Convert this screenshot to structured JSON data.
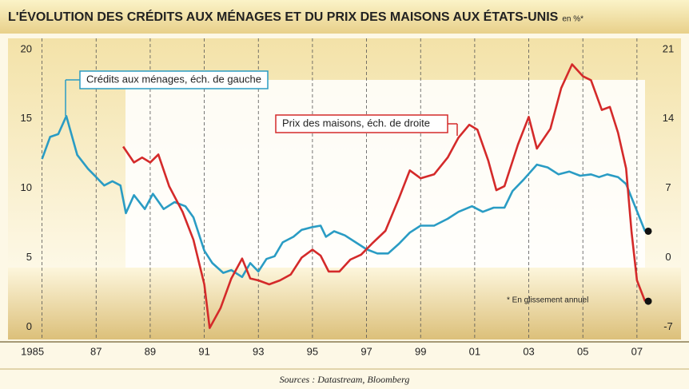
{
  "chart_data": {
    "type": "line",
    "title": "L'ÉVOLUTION DES CRÉDITS AUX MÉNAGES ET DU PRIX DES MAISONS AUX ÉTATS-UNIS",
    "subtitle": "en %*",
    "annotation": "* En glissement annuel",
    "source": "Sources : Datastream, Bloomberg",
    "xlim": [
      1983.8,
      2008.6
    ],
    "xticks": [
      {
        "value": 1985,
        "label": "1985"
      },
      {
        "value": 1987,
        "label": "87"
      },
      {
        "value": 1989,
        "label": "89"
      },
      {
        "value": 1991,
        "label": "91"
      },
      {
        "value": 1993,
        "label": "93"
      },
      {
        "value": 1995,
        "label": "95"
      },
      {
        "value": 1997,
        "label": "97"
      },
      {
        "value": 1999,
        "label": "99"
      },
      {
        "value": 2001,
        "label": "01"
      },
      {
        "value": 2003,
        "label": "03"
      },
      {
        "value": 2005,
        "label": "05"
      },
      {
        "value": 2007,
        "label": "07"
      }
    ],
    "ylim": [
      -0.9,
      20.8
    ],
    "yticks": [
      0,
      5,
      10,
      15,
      20
    ],
    "y2lim": [
      -8.26,
      22.12
    ],
    "y2ticks": [
      -7,
      0,
      7,
      14,
      21
    ],
    "grid": true,
    "series": [
      {
        "name": "Crédits aux ménages, éch. de gauche",
        "color": "#2a9cc4",
        "axis": "y",
        "x": [
          1985.0,
          1985.3,
          1985.6,
          1985.9,
          1986.3,
          1986.7,
          1987.0,
          1987.3,
          1987.6,
          1987.9,
          1988.1,
          1988.4,
          1988.8,
          1989.1,
          1989.5,
          1989.9,
          1990.3,
          1990.6,
          1991.0,
          1991.3,
          1991.7,
          1992.0,
          1992.4,
          1992.7,
          1993.0,
          1993.3,
          1993.6,
          1993.9,
          1994.3,
          1994.6,
          1995.0,
          1995.3,
          1995.5,
          1995.8,
          1996.2,
          1996.6,
          1997.0,
          1997.4,
          1997.8,
          1998.2,
          1998.6,
          1999.0,
          1999.5,
          2000.0,
          2000.4,
          2000.9,
          2001.3,
          2001.7,
          2002.1,
          2002.4,
          2002.8,
          2003.3,
          2003.7,
          2004.1,
          2004.5,
          2004.9,
          2005.3,
          2005.6,
          2005.9,
          2006.3,
          2006.6,
          2007.3
        ],
        "values": [
          12.1,
          13.7,
          13.9,
          15.2,
          12.4,
          11.4,
          10.8,
          10.2,
          10.5,
          10.2,
          8.2,
          9.5,
          8.5,
          9.6,
          8.5,
          9.0,
          8.7,
          7.9,
          5.5,
          4.6,
          3.9,
          4.1,
          3.6,
          4.6,
          4.0,
          4.9,
          5.1,
          6.1,
          6.5,
          7.0,
          7.2,
          7.3,
          6.5,
          6.9,
          6.6,
          6.1,
          5.6,
          5.3,
          5.3,
          6.0,
          6.8,
          7.3,
          7.3,
          7.8,
          8.3,
          8.7,
          8.3,
          8.6,
          8.6,
          9.8,
          10.6,
          11.7,
          11.5,
          11.0,
          11.2,
          10.9,
          11.0,
          10.8,
          11.0,
          10.8,
          10.3,
          6.9
        ]
      },
      {
        "name": "Prix des maisons, éch. de droite",
        "color": "#d42a2a",
        "axis": "y2",
        "x": [
          1988.0,
          1988.4,
          1988.7,
          1989.0,
          1989.3,
          1989.7,
          1990.2,
          1990.6,
          1991.0,
          1991.2,
          1991.6,
          1992.0,
          1992.4,
          1992.7,
          1993.0,
          1993.4,
          1993.8,
          1994.2,
          1994.6,
          1995.0,
          1995.3,
          1995.6,
          1996.0,
          1996.4,
          1996.8,
          1997.2,
          1997.7,
          1998.2,
          1998.6,
          1999.0,
          1999.5,
          2000.0,
          2000.4,
          2000.8,
          2001.1,
          2001.5,
          2001.8,
          2002.1,
          2002.6,
          2003.0,
          2003.3,
          2003.8,
          2004.2,
          2004.6,
          2005.0,
          2005.3,
          2005.7,
          2006.0,
          2006.3,
          2006.6,
          2006.8,
          2007.0,
          2007.3
        ],
        "values": [
          11.2,
          9.6,
          10.1,
          9.6,
          10.4,
          7.2,
          4.6,
          1.8,
          -2.7,
          -7.1,
          -5.1,
          -2.1,
          -0.1,
          -2.1,
          -2.3,
          -2.7,
          -2.3,
          -1.7,
          0,
          0.8,
          0.2,
          -1.4,
          -1.4,
          -0.2,
          0.3,
          1.4,
          2.7,
          6.0,
          8.8,
          8.0,
          8.4,
          10.1,
          12.1,
          13.4,
          12.9,
          9.8,
          6.8,
          7.2,
          11.4,
          14.2,
          11.0,
          13.0,
          17.1,
          19.5,
          18.3,
          17.9,
          14.9,
          15.2,
          12.6,
          9.0,
          2.6,
          -2.3,
          -4.4
        ]
      }
    ]
  }
}
